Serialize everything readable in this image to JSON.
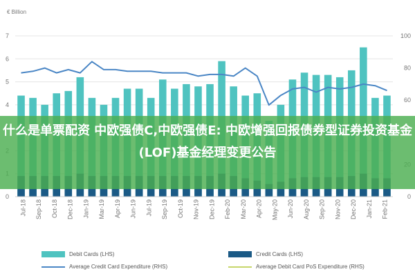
{
  "chart_data": {
    "type": "bar",
    "title": "",
    "left_axis_label": "€ Billion",
    "xlabel": "",
    "ylim": [
      0,
      7
    ],
    "y_ticks": [
      0,
      1,
      2,
      3,
      4,
      5,
      6,
      7
    ],
    "y2lim": [
      0,
      100
    ],
    "y2_ticks": [
      0,
      20,
      40,
      60,
      80,
      100
    ],
    "categories": [
      "Jul-18",
      "Aug-18",
      "Sep-18",
      "Oct-18",
      "Nov-18",
      "Dec-18",
      "Jan-19",
      "Feb-19",
      "Mar-19",
      "Apr-19",
      "May-19",
      "Jun-19",
      "Jul-19",
      "Aug-19",
      "Sep-19",
      "Oct-19",
      "Nov-19",
      "Dec-19",
      "Jan-20",
      "Feb-20",
      "Mar-20",
      "Apr-20",
      "May-20",
      "Jun-20",
      "Jul-20",
      "Aug-20",
      "Sep-20",
      "Oct-20",
      "Nov-20",
      "Dec-20",
      "Jan-21",
      "Feb-21"
    ],
    "x_tick_labels": [
      "Jul-18",
      "Sep-18",
      "Oct-18",
      "Dec-18",
      "Jan-19",
      "Mar-19",
      "Apr-19",
      "Jun-19",
      "Jul-19",
      "Sep-19",
      "Oct-19",
      "Nov-19",
      "Dec-19",
      "Feb-20",
      "Mar-20",
      "Apr-20",
      "May-20",
      "Jun-20",
      "Aug-20",
      "Sep-20",
      "Nov-20",
      "Dec-20",
      "Jan-21",
      "Feb-21"
    ],
    "grid": true,
    "series": [
      {
        "name": "Debit Cards (LHS)",
        "type": "bar",
        "axis": "left",
        "color": "#4fc3c0",
        "values": [
          4.4,
          4.3,
          4.0,
          4.5,
          4.6,
          5.2,
          4.3,
          4.0,
          4.3,
          4.7,
          4.7,
          4.3,
          5.1,
          4.7,
          4.9,
          4.8,
          4.9,
          5.9,
          4.8,
          4.4,
          4.5,
          3.3,
          4.0,
          5.1,
          5.4,
          5.3,
          5.3,
          5.2,
          5.5,
          6.5,
          4.3,
          4.4
        ]
      },
      {
        "name": "Credit Cards (LHS)",
        "type": "bar",
        "axis": "left",
        "color": "#1b5a86",
        "values": [
          0.9,
          0.9,
          0.9,
          0.9,
          0.9,
          1.0,
          0.9,
          0.9,
          0.9,
          0.9,
          0.9,
          0.9,
          0.9,
          0.9,
          0.9,
          0.9,
          0.9,
          1.0,
          0.9,
          0.8,
          0.7,
          0.55,
          0.65,
          0.8,
          0.85,
          0.85,
          0.85,
          0.85,
          0.9,
          1.0,
          0.8,
          0.8
        ]
      },
      {
        "name": "Average Credit Card Expenditure (RHS)",
        "type": "line",
        "axis": "right",
        "color": "#4a86c5",
        "values": [
          77,
          78,
          80,
          77,
          79,
          77,
          84,
          79,
          79,
          78,
          78,
          78,
          77,
          77,
          77,
          75,
          76,
          76,
          75,
          80,
          75,
          57,
          63,
          67,
          68,
          65,
          68,
          67,
          68,
          70,
          69,
          66
        ]
      },
      {
        "name": "Average Debit Card PoS Expenditure (RHS)",
        "type": "line",
        "axis": "right",
        "color": "#c7d66a",
        "values": [
          null,
          null,
          null,
          null,
          null,
          null,
          null,
          null,
          null,
          null,
          null,
          null,
          null,
          null,
          null,
          null,
          null,
          null,
          null,
          null,
          null,
          null,
          null,
          null,
          null,
          null,
          null,
          null,
          null,
          null,
          null,
          null
        ]
      }
    ]
  },
  "overlay": {
    "title": "什么是单票配资 中欧强债C,中欧强债E: 中欧增强回报债券型证券投资基金(LOF)基金经理变更公告"
  },
  "colors": {
    "grid": "#e4e4e4",
    "axis_text": "#777777",
    "overlay": "#4caf50"
  }
}
